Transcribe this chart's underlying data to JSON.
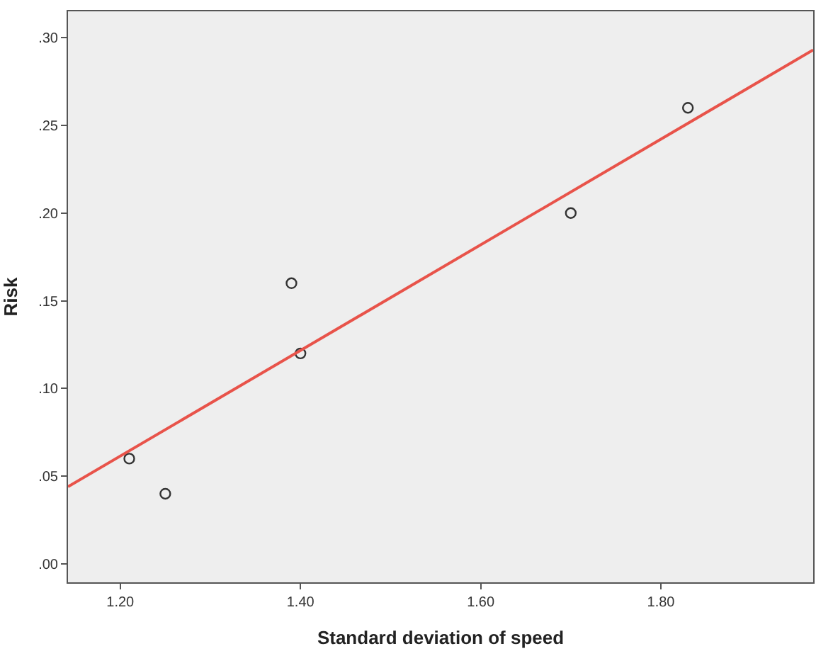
{
  "chart_data": {
    "type": "scatter",
    "xlabel": "Standard deviation of speed",
    "ylabel": "Risk",
    "xlim": [
      1.142,
      1.969
    ],
    "ylim": [
      -0.0105,
      0.315
    ],
    "xticks": [
      {
        "value": 1.2,
        "label": "1.20"
      },
      {
        "value": 1.4,
        "label": "1.40"
      },
      {
        "value": 1.6,
        "label": "1.60"
      },
      {
        "value": 1.8,
        "label": "1.80"
      }
    ],
    "yticks": [
      {
        "value": 0,
        "label": ".00"
      },
      {
        "value": 0.05,
        "label": ".05"
      },
      {
        "value": 0.1,
        "label": ".10"
      },
      {
        "value": 0.15,
        "label": ".15"
      },
      {
        "value": 0.2,
        "label": ".20"
      },
      {
        "value": 0.25,
        "label": ".25"
      },
      {
        "value": 0.3,
        "label": ".30"
      }
    ],
    "marker": "circle",
    "series": [
      {
        "color": "#333333",
        "x": [
          1.21,
          1.25,
          1.39,
          1.4,
          1.7,
          1.83
        ],
        "values": [
          0.06,
          0.04,
          0.16,
          0.12,
          0.2,
          0.26
        ]
      },
      {
        "type": "line",
        "marker": "none",
        "color": "#e8534a",
        "x": [
          1.142,
          1.969
        ],
        "values": [
          0.044,
          0.293
        ]
      }
    ]
  }
}
